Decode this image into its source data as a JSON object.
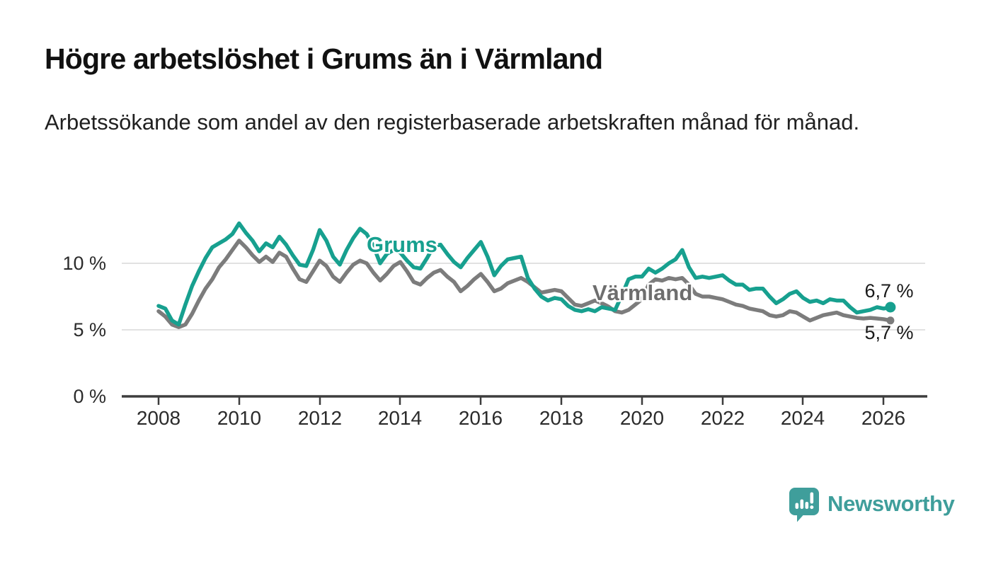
{
  "header": {
    "title": "Högre arbetslöshet i Grums än i Värmland",
    "subtitle": "Arbetssökande som andel av den registerbaserade arbetskraften månad för månad."
  },
  "chart_data": {
    "type": "line",
    "title": "Högre arbetslöshet i Grums än i Värmland",
    "x_unit": "year (monthly share of labour force, sampled every 2 months)",
    "x_start": 2008.0,
    "x_step_years": 0.1667,
    "x_end": 2026.17,
    "ylim": [
      0,
      13.8
    ],
    "grid": "horizontal",
    "legend": "inline-labels-on-lines",
    "yticks": [
      {
        "value": 0,
        "label": "0 %"
      },
      {
        "value": 5,
        "label": "5 %"
      },
      {
        "value": 10,
        "label": "10 %"
      }
    ],
    "xticks": [
      {
        "value": 2008,
        "label": "2008"
      },
      {
        "value": 2010,
        "label": "2010"
      },
      {
        "value": 2012,
        "label": "2012"
      },
      {
        "value": 2014,
        "label": "2014"
      },
      {
        "value": 2016,
        "label": "2016"
      },
      {
        "value": 2018,
        "label": "2018"
      },
      {
        "value": 2020,
        "label": "2020"
      },
      {
        "value": 2022,
        "label": "2022"
      },
      {
        "value": 2024,
        "label": "2024"
      },
      {
        "value": 2026,
        "label": "2026"
      }
    ],
    "series": [
      {
        "name": "Grums",
        "color": "#17a08f",
        "end_value": 6.7,
        "end_label": "6,7 %",
        "values": [
          6.8,
          6.6,
          5.7,
          5.4,
          6.9,
          8.3,
          9.4,
          10.4,
          11.2,
          11.5,
          11.8,
          12.2,
          13.0,
          12.3,
          11.7,
          10.9,
          11.5,
          11.2,
          12.0,
          11.4,
          10.6,
          9.9,
          9.8,
          11.0,
          12.5,
          11.7,
          10.5,
          9.9,
          11.0,
          11.9,
          12.6,
          12.2,
          11.3,
          10.0,
          10.7,
          11.0,
          10.8,
          10.2,
          9.7,
          9.6,
          10.4,
          11.3,
          11.4,
          10.7,
          10.1,
          9.7,
          10.4,
          11.0,
          11.6,
          10.5,
          9.1,
          9.8,
          10.3,
          10.4,
          10.5,
          8.9,
          8.1,
          7.5,
          7.2,
          7.4,
          7.3,
          6.8,
          6.5,
          6.4,
          6.55,
          6.4,
          6.7,
          6.6,
          6.5,
          7.6,
          8.8,
          9.0,
          9.0,
          9.6,
          9.3,
          9.6,
          10.0,
          10.3,
          11.0,
          9.7,
          8.9,
          9.0,
          8.9,
          9.0,
          9.1,
          8.7,
          8.4,
          8.4,
          8.0,
          8.1,
          8.1,
          7.5,
          7.0,
          7.3,
          7.7,
          7.9,
          7.4,
          7.1,
          7.2,
          7.0,
          7.3,
          7.2,
          7.2,
          6.7,
          6.3,
          6.4,
          6.5,
          6.7,
          6.6,
          6.7
        ]
      },
      {
        "name": "Värmland",
        "color": "#7c7c7c",
        "end_value": 5.7,
        "end_label": "5,7 %",
        "values": [
          6.4,
          6.0,
          5.4,
          5.2,
          5.4,
          6.2,
          7.2,
          8.1,
          8.8,
          9.7,
          10.3,
          11.0,
          11.7,
          11.2,
          10.6,
          10.1,
          10.5,
          10.1,
          10.8,
          10.5,
          9.6,
          8.8,
          8.6,
          9.4,
          10.2,
          9.8,
          9.0,
          8.6,
          9.3,
          9.9,
          10.2,
          10.0,
          9.3,
          8.7,
          9.2,
          9.8,
          10.1,
          9.4,
          8.6,
          8.4,
          8.9,
          9.3,
          9.5,
          9.0,
          8.6,
          7.9,
          8.3,
          8.8,
          9.2,
          8.6,
          7.9,
          8.1,
          8.5,
          8.7,
          8.9,
          8.6,
          8.2,
          7.8,
          7.9,
          8.0,
          7.9,
          7.4,
          6.9,
          6.8,
          7.0,
          7.2,
          7.0,
          6.75,
          6.4,
          6.3,
          6.5,
          6.9,
          7.3,
          8.4,
          8.8,
          8.7,
          8.9,
          8.8,
          8.9,
          8.4,
          7.7,
          7.5,
          7.5,
          7.4,
          7.3,
          7.1,
          6.9,
          6.8,
          6.6,
          6.5,
          6.4,
          6.1,
          6.0,
          6.1,
          6.4,
          6.3,
          6.0,
          5.7,
          5.9,
          6.1,
          6.2,
          6.3,
          6.1,
          6.0,
          5.9,
          5.85,
          5.9,
          5.85,
          5.8,
          5.7
        ]
      }
    ]
  },
  "branding": {
    "logo_text": "Newsworthy",
    "logo_color": "#3f9e9b",
    "logo_icon": "bar-chart-speech-bubble-icon"
  }
}
